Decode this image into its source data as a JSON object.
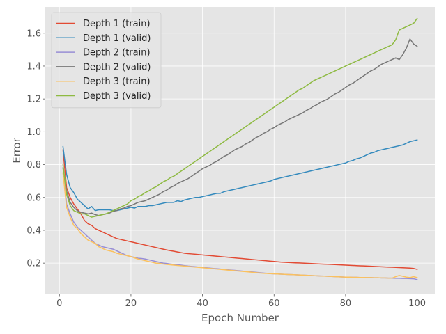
{
  "chart_data": {
    "type": "line",
    "xlabel": "Epoch Number",
    "ylabel": "Error",
    "xlim": [
      -3.95,
      104.95
    ],
    "ylim": [
      0.01,
      1.76
    ],
    "xticks": [
      0,
      20,
      40,
      60,
      80,
      100
    ],
    "yticks": [
      0.2,
      0.4,
      0.6,
      0.8,
      1.0,
      1.2,
      1.4,
      1.6
    ],
    "grid": true,
    "legend_position": "upper left",
    "colors": {
      "background": "#e5e5e5",
      "grid": "#ffffff",
      "red": "#e24a33",
      "blue": "#348abd",
      "purple": "#988ed5",
      "gray": "#777777",
      "yellow": "#fbc15e",
      "green": "#8eba42"
    },
    "x": [
      1,
      2,
      3,
      4,
      5,
      6,
      7,
      8,
      9,
      10,
      11,
      12,
      13,
      14,
      15,
      16,
      17,
      18,
      19,
      20,
      21,
      22,
      23,
      24,
      25,
      26,
      27,
      28,
      29,
      30,
      31,
      32,
      33,
      34,
      35,
      36,
      37,
      38,
      39,
      40,
      41,
      42,
      43,
      44,
      45,
      46,
      47,
      48,
      49,
      50,
      51,
      52,
      53,
      54,
      55,
      56,
      57,
      58,
      59,
      60,
      61,
      62,
      63,
      64,
      65,
      66,
      67,
      68,
      69,
      70,
      71,
      72,
      73,
      74,
      75,
      76,
      77,
      78,
      79,
      80,
      81,
      82,
      83,
      84,
      85,
      86,
      87,
      88,
      89,
      90,
      91,
      92,
      93,
      94,
      95,
      96,
      97,
      98,
      99,
      100
    ],
    "series": [
      {
        "name": "Depth 1 (train)",
        "color": "#e24a33",
        "values": [
          0.89,
          0.66,
          0.6,
          0.56,
          0.53,
          0.5,
          0.46,
          0.44,
          0.43,
          0.41,
          0.4,
          0.39,
          0.38,
          0.37,
          0.36,
          0.35,
          0.345,
          0.34,
          0.335,
          0.33,
          0.325,
          0.32,
          0.315,
          0.31,
          0.305,
          0.3,
          0.295,
          0.29,
          0.285,
          0.28,
          0.276,
          0.272,
          0.268,
          0.264,
          0.26,
          0.258,
          0.256,
          0.254,
          0.252,
          0.25,
          0.248,
          0.246,
          0.244,
          0.242,
          0.24,
          0.238,
          0.236,
          0.234,
          0.232,
          0.23,
          0.228,
          0.226,
          0.224,
          0.222,
          0.22,
          0.218,
          0.216,
          0.214,
          0.212,
          0.21,
          0.208,
          0.206,
          0.205,
          0.204,
          0.203,
          0.202,
          0.201,
          0.2,
          0.199,
          0.198,
          0.197,
          0.196,
          0.195,
          0.194,
          0.193,
          0.192,
          0.191,
          0.19,
          0.189,
          0.188,
          0.187,
          0.186,
          0.185,
          0.184,
          0.183,
          0.182,
          0.181,
          0.18,
          0.179,
          0.178,
          0.177,
          0.176,
          0.175,
          0.174,
          0.173,
          0.172,
          0.171,
          0.17,
          0.168,
          0.162
        ]
      },
      {
        "name": "Depth 1 (valid)",
        "color": "#348abd",
        "values": [
          0.91,
          0.74,
          0.66,
          0.63,
          0.59,
          0.57,
          0.55,
          0.53,
          0.545,
          0.52,
          0.525,
          0.525,
          0.525,
          0.525,
          0.52,
          0.52,
          0.525,
          0.53,
          0.535,
          0.54,
          0.535,
          0.545,
          0.545,
          0.545,
          0.55,
          0.55,
          0.555,
          0.56,
          0.565,
          0.57,
          0.57,
          0.57,
          0.58,
          0.575,
          0.585,
          0.59,
          0.595,
          0.6,
          0.6,
          0.605,
          0.61,
          0.615,
          0.62,
          0.625,
          0.625,
          0.635,
          0.64,
          0.645,
          0.65,
          0.655,
          0.66,
          0.665,
          0.67,
          0.675,
          0.68,
          0.685,
          0.69,
          0.695,
          0.7,
          0.71,
          0.715,
          0.72,
          0.725,
          0.73,
          0.735,
          0.74,
          0.745,
          0.75,
          0.755,
          0.76,
          0.765,
          0.77,
          0.775,
          0.78,
          0.785,
          0.79,
          0.795,
          0.8,
          0.805,
          0.81,
          0.82,
          0.825,
          0.835,
          0.84,
          0.85,
          0.86,
          0.87,
          0.875,
          0.885,
          0.89,
          0.895,
          0.9,
          0.905,
          0.91,
          0.915,
          0.92,
          0.93,
          0.94,
          0.945,
          0.95
        ]
      },
      {
        "name": "Depth 2 (train)",
        "color": "#988ed5",
        "values": [
          0.78,
          0.56,
          0.5,
          0.45,
          0.42,
          0.4,
          0.38,
          0.36,
          0.34,
          0.32,
          0.31,
          0.3,
          0.295,
          0.29,
          0.285,
          0.275,
          0.265,
          0.255,
          0.245,
          0.24,
          0.235,
          0.23,
          0.228,
          0.225,
          0.22,
          0.215,
          0.21,
          0.205,
          0.2,
          0.198,
          0.195,
          0.192,
          0.19,
          0.188,
          0.185,
          0.182,
          0.18,
          0.178,
          0.176,
          0.174,
          0.172,
          0.17,
          0.168,
          0.166,
          0.164,
          0.162,
          0.16,
          0.158,
          0.156,
          0.154,
          0.152,
          0.15,
          0.148,
          0.146,
          0.144,
          0.142,
          0.14,
          0.138,
          0.136,
          0.135,
          0.134,
          0.133,
          0.132,
          0.131,
          0.13,
          0.129,
          0.128,
          0.127,
          0.126,
          0.125,
          0.124,
          0.123,
          0.122,
          0.121,
          0.12,
          0.119,
          0.118,
          0.117,
          0.116,
          0.115,
          0.115,
          0.114,
          0.114,
          0.113,
          0.113,
          0.112,
          0.112,
          0.111,
          0.111,
          0.11,
          0.11,
          0.109,
          0.109,
          0.108,
          0.108,
          0.107,
          0.107,
          0.106,
          0.105,
          0.1
        ]
      },
      {
        "name": "Depth 2 (valid)",
        "color": "#777777",
        "values": [
          0.78,
          0.64,
          0.57,
          0.54,
          0.52,
          0.51,
          0.505,
          0.5,
          0.505,
          0.495,
          0.49,
          0.495,
          0.5,
          0.505,
          0.515,
          0.52,
          0.53,
          0.535,
          0.545,
          0.55,
          0.56,
          0.57,
          0.575,
          0.58,
          0.59,
          0.6,
          0.61,
          0.62,
          0.635,
          0.645,
          0.66,
          0.67,
          0.685,
          0.695,
          0.705,
          0.715,
          0.73,
          0.745,
          0.76,
          0.775,
          0.785,
          0.795,
          0.81,
          0.82,
          0.835,
          0.85,
          0.86,
          0.875,
          0.89,
          0.9,
          0.91,
          0.925,
          0.935,
          0.95,
          0.965,
          0.975,
          0.99,
          1.0,
          1.015,
          1.025,
          1.04,
          1.05,
          1.06,
          1.075,
          1.085,
          1.095,
          1.105,
          1.115,
          1.13,
          1.14,
          1.155,
          1.165,
          1.18,
          1.19,
          1.2,
          1.215,
          1.23,
          1.24,
          1.255,
          1.27,
          1.285,
          1.295,
          1.31,
          1.325,
          1.34,
          1.355,
          1.37,
          1.38,
          1.395,
          1.41,
          1.42,
          1.43,
          1.44,
          1.45,
          1.44,
          1.47,
          1.51,
          1.565,
          1.535,
          1.52
        ]
      },
      {
        "name": "Depth 3 (train)",
        "color": "#fbc15e",
        "values": [
          0.75,
          0.54,
          0.48,
          0.43,
          0.41,
          0.38,
          0.36,
          0.34,
          0.33,
          0.32,
          0.3,
          0.29,
          0.28,
          0.275,
          0.27,
          0.26,
          0.255,
          0.25,
          0.245,
          0.24,
          0.232,
          0.225,
          0.22,
          0.215,
          0.21,
          0.205,
          0.2,
          0.198,
          0.195,
          0.192,
          0.19,
          0.188,
          0.186,
          0.184,
          0.182,
          0.18,
          0.178,
          0.176,
          0.174,
          0.172,
          0.17,
          0.168,
          0.166,
          0.164,
          0.162,
          0.16,
          0.158,
          0.156,
          0.154,
          0.152,
          0.15,
          0.148,
          0.146,
          0.144,
          0.142,
          0.14,
          0.138,
          0.137,
          0.136,
          0.135,
          0.134,
          0.133,
          0.132,
          0.131,
          0.13,
          0.129,
          0.128,
          0.127,
          0.126,
          0.125,
          0.124,
          0.123,
          0.122,
          0.121,
          0.12,
          0.119,
          0.118,
          0.117,
          0.116,
          0.115,
          0.115,
          0.114,
          0.114,
          0.113,
          0.113,
          0.112,
          0.112,
          0.111,
          0.111,
          0.11,
          0.11,
          0.109,
          0.109,
          0.118,
          0.125,
          0.12,
          0.115,
          0.112,
          0.118,
          0.112
        ]
      },
      {
        "name": "Depth 3 (valid)",
        "color": "#8eba42",
        "values": [
          0.8,
          0.62,
          0.55,
          0.52,
          0.51,
          0.5,
          0.5,
          0.49,
          0.48,
          0.485,
          0.49,
          0.495,
          0.5,
          0.51,
          0.52,
          0.53,
          0.54,
          0.55,
          0.56,
          0.58,
          0.59,
          0.605,
          0.615,
          0.63,
          0.64,
          0.655,
          0.665,
          0.68,
          0.695,
          0.705,
          0.72,
          0.73,
          0.745,
          0.76,
          0.775,
          0.79,
          0.805,
          0.82,
          0.835,
          0.85,
          0.865,
          0.88,
          0.895,
          0.91,
          0.925,
          0.94,
          0.955,
          0.97,
          0.985,
          1.0,
          1.015,
          1.03,
          1.045,
          1.06,
          1.075,
          1.09,
          1.105,
          1.12,
          1.135,
          1.15,
          1.165,
          1.18,
          1.195,
          1.21,
          1.225,
          1.24,
          1.255,
          1.265,
          1.28,
          1.295,
          1.31,
          1.32,
          1.33,
          1.34,
          1.35,
          1.36,
          1.37,
          1.38,
          1.39,
          1.4,
          1.41,
          1.42,
          1.43,
          1.44,
          1.45,
          1.46,
          1.47,
          1.48,
          1.49,
          1.5,
          1.51,
          1.52,
          1.53,
          1.56,
          1.62,
          1.63,
          1.64,
          1.65,
          1.66,
          1.69
        ]
      }
    ]
  }
}
